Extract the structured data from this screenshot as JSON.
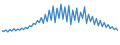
{
  "chart_data": {
    "type": "line",
    "categories": [
      null,
      null,
      null,
      null,
      null,
      null,
      null,
      null,
      null,
      null,
      null,
      null,
      null,
      null,
      null,
      null,
      null,
      null,
      null,
      null,
      null,
      null,
      null,
      null,
      null,
      null,
      null,
      null,
      null,
      null,
      null,
      null,
      null,
      null,
      null,
      null,
      null,
      null,
      null,
      null,
      null,
      null,
      null,
      null,
      null,
      null,
      null,
      null,
      null,
      null,
      null,
      null,
      null,
      null,
      null,
      null,
      null,
      null,
      null,
      null
    ],
    "values": [
      30,
      28,
      32,
      27,
      33,
      29,
      35,
      30,
      34,
      31,
      36,
      33,
      38,
      35,
      42,
      40,
      48,
      45,
      55,
      50,
      62,
      48,
      70,
      52,
      80,
      55,
      90,
      50,
      85,
      60,
      95,
      58,
      88,
      52,
      92,
      45,
      80,
      55,
      85,
      50,
      75,
      60,
      88,
      48,
      70,
      52,
      65,
      45,
      60,
      42,
      55,
      40,
      50,
      38,
      45,
      35,
      40,
      33,
      36,
      30
    ],
    "color": "#3a87c8",
    "ylim": [
      0,
      100
    ],
    "yticks": [],
    "grid": false,
    "tick_labels": false
  }
}
